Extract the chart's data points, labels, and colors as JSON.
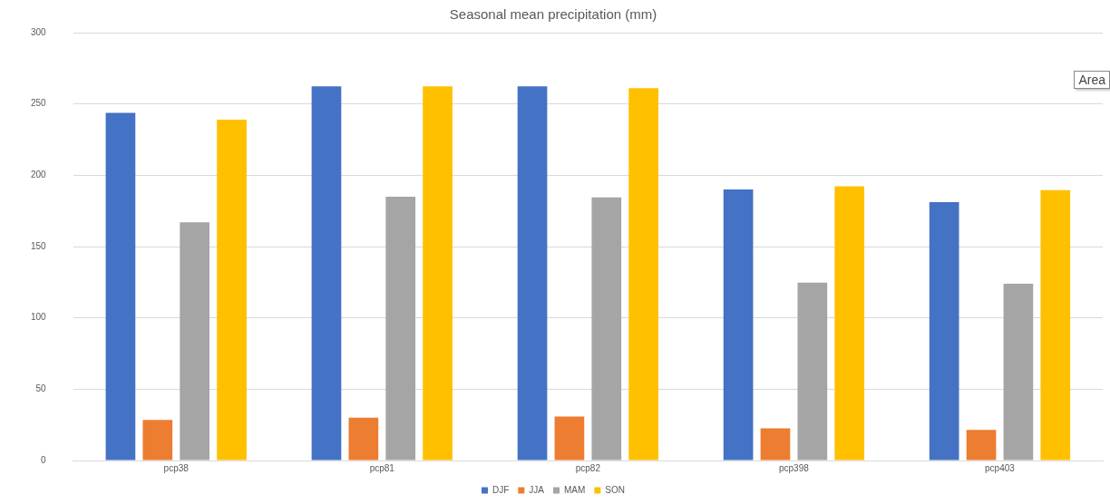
{
  "chart_data": {
    "type": "bar",
    "title": "Seasonal mean precipitation (mm)",
    "categories": [
      "pcp38",
      "pcp81",
      "pcp82",
      "pcp398",
      "pcp403"
    ],
    "series": [
      {
        "name": "DJF",
        "color": "#4472c4",
        "values": [
          243.7,
          262.3,
          262.3,
          190,
          181.2
        ]
      },
      {
        "name": "JJA",
        "color": "#ed7d31",
        "values": [
          28.4,
          30,
          30.8,
          22.5,
          21.5
        ]
      },
      {
        "name": "MAM",
        "color": "#a5a5a5",
        "values": [
          167,
          185,
          184.5,
          124.8,
          124
        ]
      },
      {
        "name": "SON",
        "color": "#ffc000",
        "values": [
          239,
          262.3,
          261,
          192.3,
          189.5
        ]
      }
    ],
    "ylim": [
      0,
      300
    ],
    "yticks": [
      0,
      50,
      100,
      150,
      200,
      250,
      300
    ],
    "grid": "y",
    "legend": "bottom",
    "annotations": [
      "Area"
    ]
  }
}
